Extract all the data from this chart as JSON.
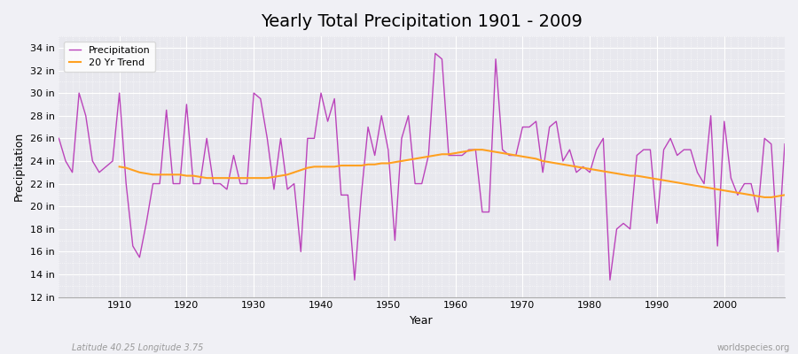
{
  "title": "Yearly Total Precipitation 1901 - 2009",
  "xlabel": "Year",
  "ylabel": "Precipitation",
  "background_color": "#f0f0f5",
  "plot_bg_color": "#e8e8ee",
  "precipitation_color": "#bb44bb",
  "trend_color": "#ffa020",
  "ylim": [
    12,
    35
  ],
  "yticks": [
    12,
    14,
    16,
    18,
    20,
    22,
    24,
    26,
    28,
    30,
    32,
    34
  ],
  "ytick_labels": [
    "12 in",
    "14 in",
    "16 in",
    "18 in",
    "20 in",
    "22 in",
    "24 in",
    "26 in",
    "28 in",
    "30 in",
    "32 in",
    "34 in"
  ],
  "years": [
    1901,
    1902,
    1903,
    1904,
    1905,
    1906,
    1907,
    1908,
    1909,
    1910,
    1911,
    1912,
    1913,
    1914,
    1915,
    1916,
    1917,
    1918,
    1919,
    1920,
    1921,
    1922,
    1923,
    1924,
    1925,
    1926,
    1927,
    1928,
    1929,
    1930,
    1931,
    1932,
    1933,
    1934,
    1935,
    1936,
    1937,
    1938,
    1939,
    1940,
    1941,
    1942,
    1943,
    1944,
    1945,
    1946,
    1947,
    1948,
    1949,
    1950,
    1951,
    1952,
    1953,
    1954,
    1955,
    1956,
    1957,
    1958,
    1959,
    1960,
    1961,
    1962,
    1963,
    1964,
    1965,
    1966,
    1967,
    1968,
    1969,
    1970,
    1971,
    1972,
    1973,
    1974,
    1975,
    1976,
    1977,
    1978,
    1979,
    1980,
    1981,
    1982,
    1983,
    1984,
    1985,
    1986,
    1987,
    1988,
    1989,
    1990,
    1991,
    1992,
    1993,
    1994,
    1995,
    1996,
    1997,
    1998,
    1999,
    2000,
    2001,
    2002,
    2003,
    2004,
    2005,
    2006,
    2007,
    2008,
    2009
  ],
  "precip": [
    26.0,
    24.0,
    23.0,
    30.0,
    28.0,
    24.0,
    23.0,
    23.5,
    24.0,
    30.0,
    22.0,
    16.5,
    15.5,
    18.5,
    22.0,
    22.0,
    28.5,
    22.0,
    22.0,
    29.0,
    22.0,
    22.0,
    26.0,
    22.0,
    22.0,
    21.5,
    24.5,
    22.0,
    22.0,
    30.0,
    29.5,
    26.0,
    21.5,
    26.0,
    21.5,
    22.0,
    16.0,
    26.0,
    26.0,
    30.0,
    27.5,
    29.5,
    21.0,
    21.0,
    13.5,
    21.0,
    27.0,
    24.5,
    28.0,
    25.0,
    17.0,
    26.0,
    28.0,
    22.0,
    22.0,
    24.5,
    33.5,
    33.0,
    24.5,
    24.5,
    24.5,
    25.0,
    25.0,
    19.5,
    19.5,
    33.0,
    25.0,
    24.5,
    24.5,
    27.0,
    27.0,
    27.5,
    23.0,
    27.0,
    27.5,
    24.0,
    25.0,
    23.0,
    23.5,
    23.0,
    25.0,
    26.0,
    13.5,
    18.0,
    18.5,
    18.0,
    24.5,
    25.0,
    25.0,
    18.5,
    25.0,
    26.0,
    24.5,
    25.0,
    25.0,
    23.0,
    22.0,
    28.0,
    16.5,
    27.5,
    22.5,
    21.0,
    22.0,
    22.0,
    19.5,
    26.0,
    25.5,
    16.0,
    25.5
  ],
  "trend_years": [
    1910,
    1911,
    1912,
    1913,
    1914,
    1915,
    1916,
    1917,
    1918,
    1919,
    1920,
    1921,
    1922,
    1923,
    1924,
    1925,
    1926,
    1927,
    1928,
    1929,
    1930,
    1931,
    1932,
    1933,
    1934,
    1935,
    1936,
    1937,
    1938,
    1939,
    1940,
    1941,
    1942,
    1943,
    1944,
    1945,
    1946,
    1947,
    1948,
    1949,
    1950,
    1951,
    1952,
    1953,
    1954,
    1955,
    1956,
    1957,
    1958,
    1959,
    1960,
    1961,
    1962,
    1963,
    1964,
    1965,
    1966,
    1967,
    1968,
    1969,
    1970,
    1971,
    1972,
    1973,
    1974,
    1975,
    1976,
    1977,
    1978,
    1979,
    1980,
    1981,
    1982,
    1983,
    1984,
    1985,
    1986,
    1987,
    1988,
    1989,
    1990,
    1991,
    1992,
    1993,
    1994,
    1995,
    1996,
    1997,
    1998,
    1999,
    2000,
    2001,
    2002,
    2003,
    2004,
    2005,
    2006,
    2007,
    2008,
    2009
  ],
  "trend_values": [
    23.5,
    23.4,
    23.2,
    23.0,
    22.9,
    22.8,
    22.8,
    22.8,
    22.8,
    22.8,
    22.7,
    22.7,
    22.6,
    22.5,
    22.5,
    22.5,
    22.5,
    22.5,
    22.5,
    22.5,
    22.5,
    22.5,
    22.5,
    22.6,
    22.7,
    22.8,
    23.0,
    23.2,
    23.4,
    23.5,
    23.5,
    23.5,
    23.5,
    23.6,
    23.6,
    23.6,
    23.6,
    23.7,
    23.7,
    23.8,
    23.8,
    23.9,
    24.0,
    24.1,
    24.2,
    24.3,
    24.4,
    24.5,
    24.6,
    24.6,
    24.7,
    24.8,
    24.9,
    25.0,
    25.0,
    24.9,
    24.8,
    24.7,
    24.6,
    24.5,
    24.4,
    24.3,
    24.2,
    24.0,
    23.9,
    23.8,
    23.7,
    23.6,
    23.5,
    23.4,
    23.3,
    23.2,
    23.1,
    23.0,
    22.9,
    22.8,
    22.7,
    22.7,
    22.6,
    22.5,
    22.4,
    22.3,
    22.2,
    22.1,
    22.0,
    21.9,
    21.8,
    21.7,
    21.6,
    21.5,
    21.4,
    21.3,
    21.2,
    21.1,
    21.0,
    20.9,
    20.8,
    20.8,
    20.9,
    21.0
  ],
  "footer_left": "Latitude 40.25 Longitude 3.75",
  "footer_right": "worldspecies.org",
  "title_fontsize": 14,
  "axis_label_fontsize": 9,
  "tick_fontsize": 8,
  "legend_fontsize": 8
}
